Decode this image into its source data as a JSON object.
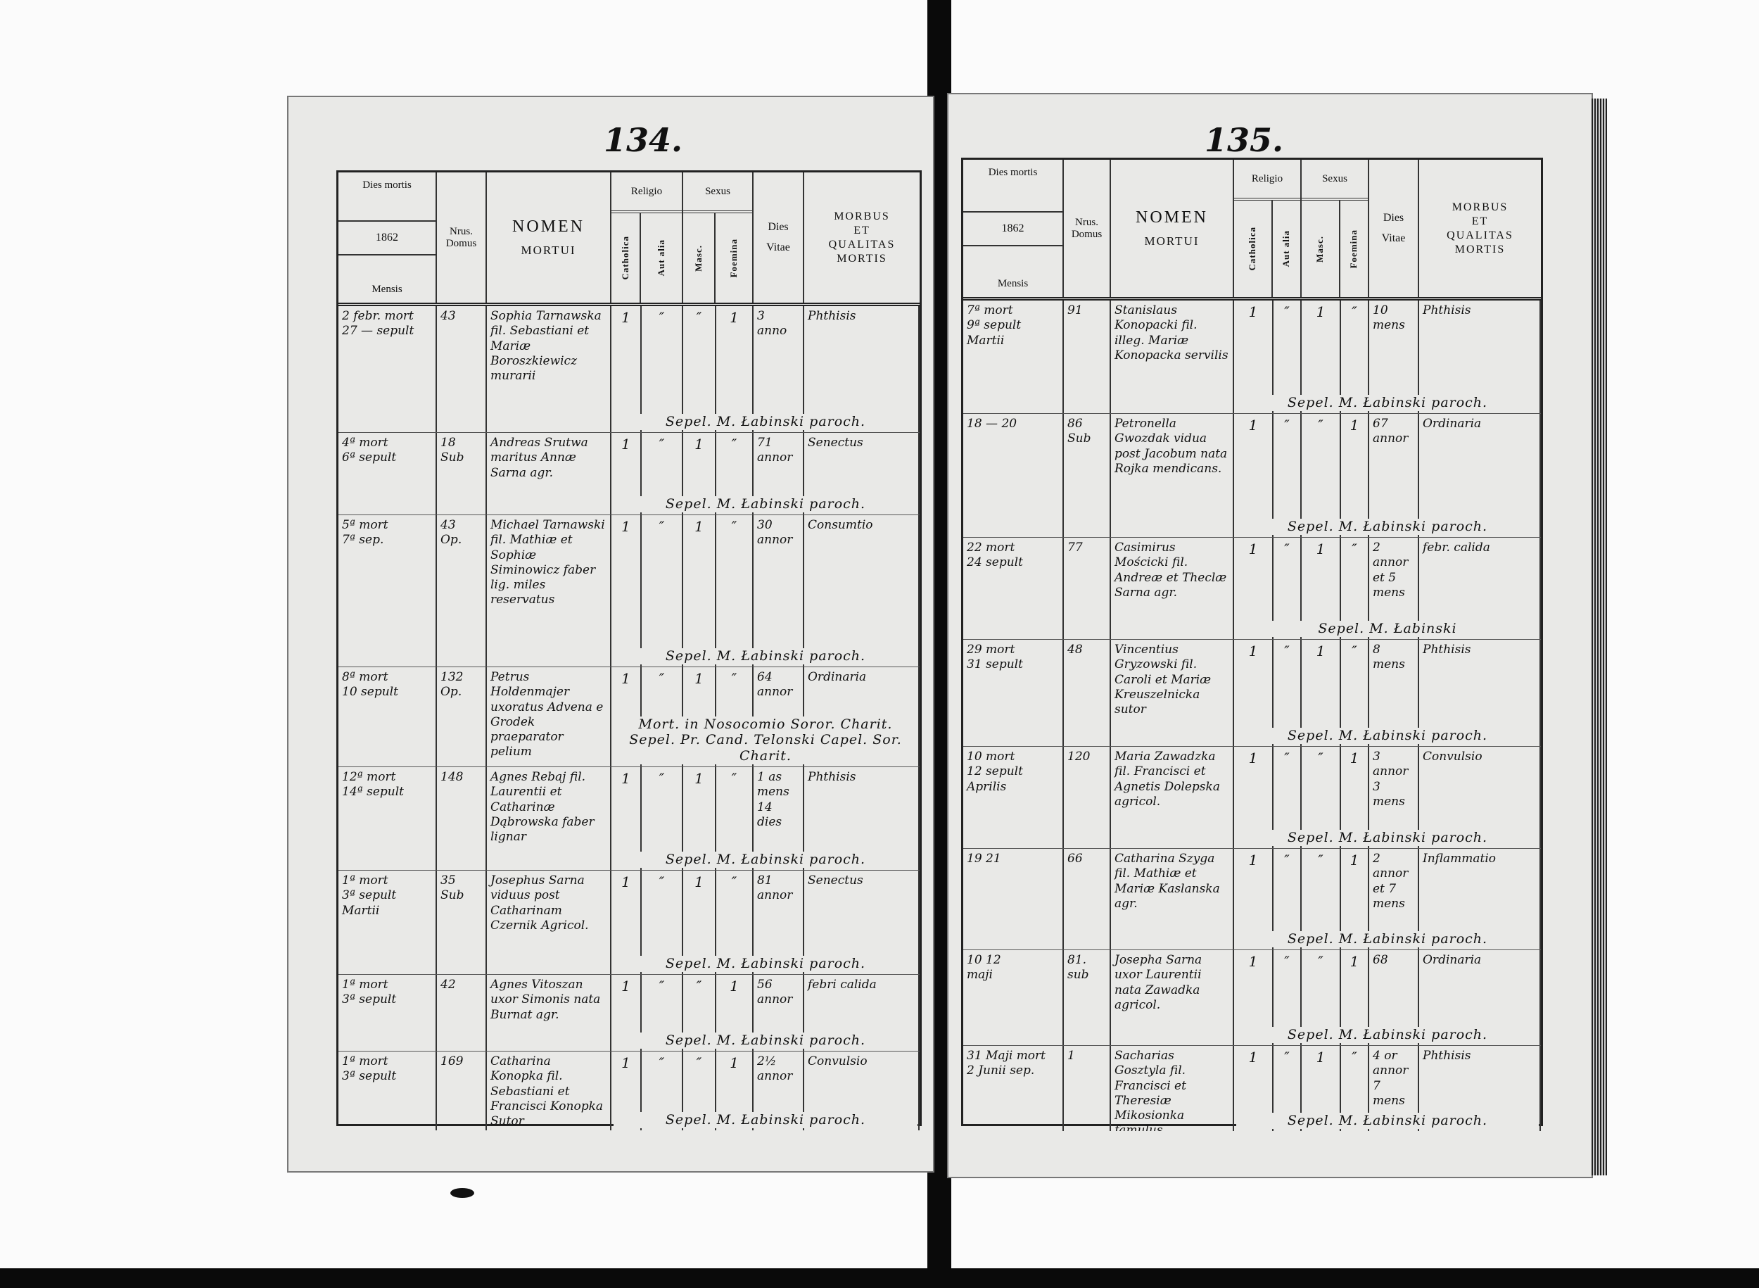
{
  "header": {
    "dies_mortis": "Dies mortis",
    "year": "1862",
    "mensis": "Mensis",
    "nrus": "Nrus.",
    "domus": "Domus",
    "nomen": "NOMEN",
    "mortui": "MORTUI",
    "religio": "Religio",
    "catholica": "Catholica",
    "aut_alia": "Aut alia",
    "sexus": "Sexus",
    "masc": "Masc.",
    "foemina": "Foemina",
    "dies_vitae": "Dies\nVitae",
    "morbus": "MORBUS\nET\nQUALITAS\nMORTIS"
  },
  "pages": [
    {
      "page_number": "134.",
      "entries": [
        {
          "dies": "2 febr. mort\n27 — sepult",
          "domus": "43",
          "nomen": "Sophia Tarnawska fil. Sebastiani et Mariæ Boroszkiewicz murarii",
          "catholica": "1",
          "aut_alia": "″",
          "masc": "″",
          "foemina": "1",
          "vitae": "3\nanno",
          "morbus": "Phthisis",
          "burial": "Sepel.   M. Łabinski paroch."
        },
        {
          "dies": "4ª   mort\n6ª   sepult",
          "domus": "18\nSub",
          "nomen": "Andreas Srutwa maritus Annæ Sarna agr.",
          "catholica": "1",
          "aut_alia": "″",
          "masc": "1",
          "foemina": "″",
          "vitae": "71\nannor",
          "morbus": "Senectus",
          "burial": "Sepel.   M. Łabinski paroch."
        },
        {
          "dies": "5ª   mort\n7ª   sep.",
          "domus": "43\nOp.",
          "nomen": "Michael Tarnawski fil. Mathiæ et Sophiæ Siminowicz faber lig. miles reservatus",
          "catholica": "1",
          "aut_alia": "″",
          "masc": "1",
          "foemina": "″",
          "vitae": "30\nannor",
          "morbus": "Consumtio",
          "burial": "Sepel.   M. Łabinski paroch."
        },
        {
          "dies": "8ª   mort\n10   sepult",
          "domus": "132\nOp.",
          "nomen": "Petrus Holdenmajer uxoratus Advena e Grodek praeparator pelium",
          "catholica": "1",
          "aut_alia": "″",
          "masc": "1",
          "foemina": "″",
          "vitae": "64\nannor",
          "morbus": "Ordinaria",
          "burial": "Mort. in Nosocomio Soror. Charit. Sepel. Pr. Cand. Telonski Capel. Sor. Charit."
        },
        {
          "dies": "12ª  mort\n14ª  sepult",
          "domus": "148",
          "nomen": "Agnes Rebaj fil. Laurentii et Catharinæ Dąbrowska faber lignar",
          "catholica": "1",
          "aut_alia": "″",
          "masc": "1",
          "foemina": "″",
          "vitae": "1 as mens\n14 dies",
          "morbus": "Phthisis",
          "burial": "Sepel.   M. Łabinski paroch."
        },
        {
          "dies": "1ª   mort\n3ª   sepult\nMartii",
          "domus": "35\nSub",
          "nomen": "Josephus Sarna viduus post Catharinam Czernik Agricol.",
          "catholica": "1",
          "aut_alia": "″",
          "masc": "1",
          "foemina": "″",
          "vitae": "81\nannor",
          "morbus": "Senectus",
          "burial": "Sepel.   M. Łabinski paroch."
        },
        {
          "dies": "1ª   mort\n3ª   sepult",
          "domus": "42",
          "nomen": "Agnes Vitoszan uxor Simonis nata Burnat agr.",
          "catholica": "1",
          "aut_alia": "″",
          "masc": "″",
          "foemina": "1",
          "vitae": "56\nannor",
          "morbus": "febri calida",
          "burial": "Sepel.   M. Łabinski paroch."
        },
        {
          "dies": "1ª   mort\n3ª   sepult",
          "domus": "169",
          "nomen": "Catharina Konopka fil. Sebastiani et Francisci Konopka Sutor",
          "catholica": "1",
          "aut_alia": "″",
          "masc": "″",
          "foemina": "1",
          "vitae": "2½\nannor",
          "morbus": "Convulsio",
          "burial": "Sepel.   M. Łabinski paroch."
        }
      ]
    },
    {
      "page_number": "135.",
      "entries": [
        {
          "dies": "7ª   mort\n9ª   sepult\nMartii",
          "domus": "91",
          "nomen": "Stanislaus Konopacki fil. illeg. Mariæ Konopacka servilis",
          "catholica": "1",
          "aut_alia": "″",
          "masc": "1",
          "foemina": "″",
          "vitae": "10\nmens",
          "morbus": "Phthisis",
          "burial": "Sepel.   M. Łabinski paroch."
        },
        {
          "dies": "18  —  20",
          "domus": "86\nSub",
          "nomen": "Petronella Gwozdak vidua post Jacobum nata Rojka mendicans.",
          "catholica": "1",
          "aut_alia": "″",
          "masc": "″",
          "foemina": "1",
          "vitae": "67\nannor",
          "morbus": "Ordinaria",
          "burial": "Sepel.   M. Łabinski paroch."
        },
        {
          "dies": "22   mort\n24   sepult",
          "domus": "77",
          "nomen": "Casimirus Mościcki fil. Andreæ et Theclæ Sarna agr.",
          "catholica": "1",
          "aut_alia": "″",
          "masc": "1",
          "foemina": "″",
          "vitae": "2 annor\net 5\nmens",
          "morbus": "febr. calida",
          "burial": "Sepel.   M. Łabinski"
        },
        {
          "dies": "29   mort\n31   sepult",
          "domus": "48",
          "nomen": "Vincentius Gryzowski fil. Caroli et Mariæ Kreuszelnicka sutor",
          "catholica": "1",
          "aut_alia": "″",
          "masc": "1",
          "foemina": "″",
          "vitae": "8\nmens",
          "morbus": "Phthisis",
          "burial": "Sepel.   M. Łabinski paroch."
        },
        {
          "dies": "10   mort\n12   sepult\nAprilis",
          "domus": "120",
          "nomen": "Maria Zawadzka fil. Francisci et Agnetis Dolepska agricol.",
          "catholica": "1",
          "aut_alia": "″",
          "masc": "″",
          "foemina": "1",
          "vitae": "3\nannor\n3 mens",
          "morbus": "Convulsio",
          "burial": "Sepel.   M. Łabinski paroch."
        },
        {
          "dies": "19     21",
          "domus": "66",
          "nomen": "Catharina Szyga fil. Mathiæ et Mariæ Kaslanska agr.",
          "catholica": "1",
          "aut_alia": "″",
          "masc": "″",
          "foemina": "1",
          "vitae": "2 annor\net 7\nmens",
          "morbus": "Inflammatio",
          "burial": "Sepel.   M. Łabinski paroch."
        },
        {
          "dies": "10  12\nmaji",
          "domus": "81.\nsub",
          "nomen": "Josepha Sarna uxor Laurentii nata Zawadka agricol.",
          "catholica": "1",
          "aut_alia": "″",
          "masc": "″",
          "foemina": "1",
          "vitae": "68",
          "morbus": "Ordinaria",
          "burial": "Sepel.   M. Łabinski paroch."
        },
        {
          "dies": "31 Maji mort\n2 Junii sep.",
          "domus": "1",
          "nomen": "Sacharias Gosztyla fil. Francisci et Theresiæ Mikosionka famulus",
          "catholica": "1",
          "aut_alia": "″",
          "masc": "1",
          "foemina": "″",
          "vitae": "4 or\nannor\n7 mens",
          "morbus": "Phthisis",
          "burial": "Sepel.   M. Łabinski paroch."
        }
      ]
    }
  ]
}
